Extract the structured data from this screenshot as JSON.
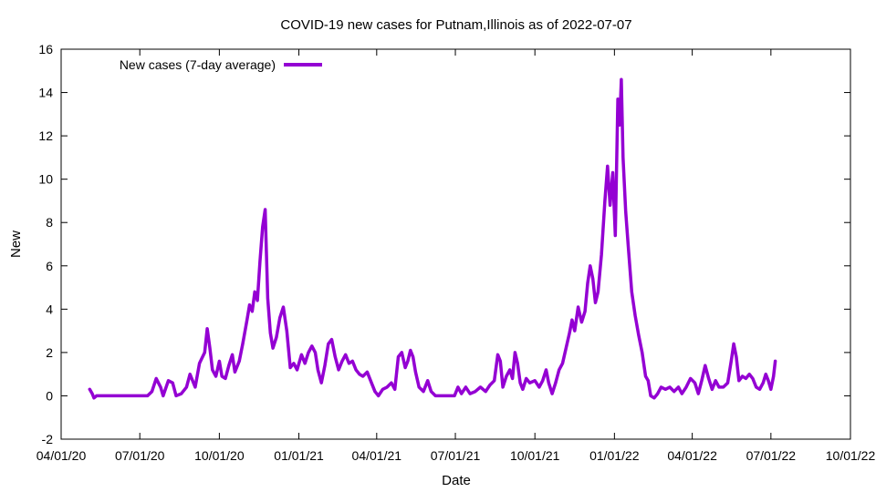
{
  "chart_data": {
    "type": "line",
    "title": "COVID-19 new cases for Putnam,Illinois as of 2022-07-07",
    "xlabel": "Date",
    "ylabel": "New",
    "ylim": [
      -2,
      16
    ],
    "yticks": [
      -2,
      0,
      2,
      4,
      6,
      8,
      10,
      12,
      14,
      16
    ],
    "xlim": [
      "2020-04-01",
      "2022-10-01"
    ],
    "xticks": [
      {
        "date": "2020-04-01",
        "label": "04/01/20"
      },
      {
        "date": "2020-07-01",
        "label": "07/01/20"
      },
      {
        "date": "2020-10-01",
        "label": "10/01/20"
      },
      {
        "date": "2021-01-01",
        "label": "01/01/21"
      },
      {
        "date": "2021-04-01",
        "label": "04/01/21"
      },
      {
        "date": "2021-07-01",
        "label": "07/01/21"
      },
      {
        "date": "2021-10-01",
        "label": "10/01/21"
      },
      {
        "date": "2022-01-01",
        "label": "01/01/22"
      },
      {
        "date": "2022-04-01",
        "label": "04/01/22"
      },
      {
        "date": "2022-07-01",
        "label": "07/01/22"
      },
      {
        "date": "2022-10-01",
        "label": "10/01/22"
      }
    ],
    "grid": false,
    "legend_position": "top-left",
    "series": [
      {
        "name": "New cases (7-day average)",
        "color": "#9400d3",
        "points": [
          [
            "2020-05-04",
            0.3
          ],
          [
            "2020-05-07",
            0.1
          ],
          [
            "2020-05-09",
            -0.1
          ],
          [
            "2020-05-12",
            0.0
          ],
          [
            "2020-06-01",
            0.0
          ],
          [
            "2020-06-20",
            0.0
          ],
          [
            "2020-07-10",
            0.0
          ],
          [
            "2020-07-15",
            0.2
          ],
          [
            "2020-07-20",
            0.8
          ],
          [
            "2020-07-25",
            0.4
          ],
          [
            "2020-07-28",
            0.0
          ],
          [
            "2020-08-03",
            0.7
          ],
          [
            "2020-08-08",
            0.6
          ],
          [
            "2020-08-12",
            0.0
          ],
          [
            "2020-08-18",
            0.1
          ],
          [
            "2020-08-24",
            0.4
          ],
          [
            "2020-08-28",
            1.0
          ],
          [
            "2020-09-03",
            0.4
          ],
          [
            "2020-09-08",
            1.5
          ],
          [
            "2020-09-14",
            2.0
          ],
          [
            "2020-09-17",
            3.1
          ],
          [
            "2020-09-20",
            2.2
          ],
          [
            "2020-09-23",
            1.2
          ],
          [
            "2020-09-27",
            0.9
          ],
          [
            "2020-10-01",
            1.6
          ],
          [
            "2020-10-04",
            0.9
          ],
          [
            "2020-10-08",
            0.8
          ],
          [
            "2020-10-12",
            1.4
          ],
          [
            "2020-10-16",
            1.9
          ],
          [
            "2020-10-19",
            1.1
          ],
          [
            "2020-10-24",
            1.6
          ],
          [
            "2020-10-28",
            2.4
          ],
          [
            "2020-11-02",
            3.5
          ],
          [
            "2020-11-05",
            4.2
          ],
          [
            "2020-11-08",
            3.9
          ],
          [
            "2020-11-11",
            4.8
          ],
          [
            "2020-11-14",
            4.4
          ],
          [
            "2020-11-17",
            6.2
          ],
          [
            "2020-11-20",
            7.8
          ],
          [
            "2020-11-23",
            8.6
          ],
          [
            "2020-11-26",
            4.5
          ],
          [
            "2020-11-29",
            2.9
          ],
          [
            "2020-12-02",
            2.2
          ],
          [
            "2020-12-06",
            2.7
          ],
          [
            "2020-12-10",
            3.6
          ],
          [
            "2020-12-14",
            4.1
          ],
          [
            "2020-12-18",
            3.0
          ],
          [
            "2020-12-22",
            1.3
          ],
          [
            "2020-12-26",
            1.5
          ],
          [
            "2020-12-30",
            1.2
          ],
          [
            "2021-01-04",
            1.9
          ],
          [
            "2021-01-08",
            1.5
          ],
          [
            "2021-01-12",
            2.0
          ],
          [
            "2021-01-16",
            2.3
          ],
          [
            "2021-01-20",
            2.0
          ],
          [
            "2021-01-23",
            1.2
          ],
          [
            "2021-01-27",
            0.6
          ],
          [
            "2021-01-31",
            1.4
          ],
          [
            "2021-02-04",
            2.4
          ],
          [
            "2021-02-08",
            2.6
          ],
          [
            "2021-02-12",
            1.8
          ],
          [
            "2021-02-16",
            1.2
          ],
          [
            "2021-02-20",
            1.6
          ],
          [
            "2021-02-24",
            1.9
          ],
          [
            "2021-02-28",
            1.5
          ],
          [
            "2021-03-04",
            1.6
          ],
          [
            "2021-03-08",
            1.2
          ],
          [
            "2021-03-12",
            1.0
          ],
          [
            "2021-03-16",
            0.9
          ],
          [
            "2021-03-21",
            1.1
          ],
          [
            "2021-03-26",
            0.6
          ],
          [
            "2021-03-30",
            0.2
          ],
          [
            "2021-04-03",
            0.0
          ],
          [
            "2021-04-08",
            0.3
          ],
          [
            "2021-04-13",
            0.4
          ],
          [
            "2021-04-18",
            0.6
          ],
          [
            "2021-04-22",
            0.3
          ],
          [
            "2021-04-26",
            1.8
          ],
          [
            "2021-04-30",
            2.0
          ],
          [
            "2021-05-04",
            1.3
          ],
          [
            "2021-05-07",
            1.6
          ],
          [
            "2021-05-10",
            2.1
          ],
          [
            "2021-05-13",
            1.8
          ],
          [
            "2021-05-16",
            1.1
          ],
          [
            "2021-05-20",
            0.4
          ],
          [
            "2021-05-25",
            0.2
          ],
          [
            "2021-05-30",
            0.7
          ],
          [
            "2021-06-03",
            0.2
          ],
          [
            "2021-06-08",
            0.0
          ],
          [
            "2021-06-20",
            0.0
          ],
          [
            "2021-06-30",
            0.0
          ],
          [
            "2021-07-04",
            0.4
          ],
          [
            "2021-07-08",
            0.1
          ],
          [
            "2021-07-13",
            0.4
          ],
          [
            "2021-07-18",
            0.1
          ],
          [
            "2021-07-24",
            0.2
          ],
          [
            "2021-07-30",
            0.4
          ],
          [
            "2021-08-05",
            0.2
          ],
          [
            "2021-08-10",
            0.5
          ],
          [
            "2021-08-15",
            0.7
          ],
          [
            "2021-08-19",
            1.9
          ],
          [
            "2021-08-22",
            1.6
          ],
          [
            "2021-08-25",
            0.4
          ],
          [
            "2021-08-29",
            0.9
          ],
          [
            "2021-09-02",
            1.2
          ],
          [
            "2021-09-05",
            0.8
          ],
          [
            "2021-09-08",
            2.0
          ],
          [
            "2021-09-11",
            1.5
          ],
          [
            "2021-09-14",
            0.6
          ],
          [
            "2021-09-17",
            0.3
          ],
          [
            "2021-09-21",
            0.8
          ],
          [
            "2021-09-25",
            0.6
          ],
          [
            "2021-10-01",
            0.7
          ],
          [
            "2021-10-06",
            0.4
          ],
          [
            "2021-10-10",
            0.7
          ],
          [
            "2021-10-14",
            1.2
          ],
          [
            "2021-10-17",
            0.6
          ],
          [
            "2021-10-21",
            0.1
          ],
          [
            "2021-10-25",
            0.6
          ],
          [
            "2021-10-29",
            1.2
          ],
          [
            "2021-11-02",
            1.5
          ],
          [
            "2021-11-06",
            2.2
          ],
          [
            "2021-11-10",
            2.9
          ],
          [
            "2021-11-13",
            3.5
          ],
          [
            "2021-11-16",
            3.0
          ],
          [
            "2021-11-20",
            4.1
          ],
          [
            "2021-11-24",
            3.4
          ],
          [
            "2021-11-28",
            3.9
          ],
          [
            "2021-12-01",
            5.2
          ],
          [
            "2021-12-04",
            6.0
          ],
          [
            "2021-12-07",
            5.4
          ],
          [
            "2021-12-10",
            4.3
          ],
          [
            "2021-12-13",
            4.8
          ],
          [
            "2021-12-17",
            6.5
          ],
          [
            "2021-12-21",
            9.0
          ],
          [
            "2021-12-24",
            10.6
          ],
          [
            "2021-12-27",
            8.8
          ],
          [
            "2021-12-30",
            10.3
          ],
          [
            "2022-01-02",
            7.4
          ],
          [
            "2022-01-05",
            13.7
          ],
          [
            "2022-01-07",
            12.5
          ],
          [
            "2022-01-09",
            14.6
          ],
          [
            "2022-01-11",
            11.0
          ],
          [
            "2022-01-14",
            8.5
          ],
          [
            "2022-01-17",
            6.9
          ],
          [
            "2022-01-21",
            4.8
          ],
          [
            "2022-01-25",
            3.7
          ],
          [
            "2022-01-29",
            2.8
          ],
          [
            "2022-02-02",
            2.0
          ],
          [
            "2022-02-06",
            0.9
          ],
          [
            "2022-02-09",
            0.7
          ],
          [
            "2022-02-12",
            0.0
          ],
          [
            "2022-02-16",
            -0.1
          ],
          [
            "2022-02-20",
            0.1
          ],
          [
            "2022-02-24",
            0.4
          ],
          [
            "2022-03-01",
            0.3
          ],
          [
            "2022-03-06",
            0.4
          ],
          [
            "2022-03-11",
            0.2
          ],
          [
            "2022-03-16",
            0.4
          ],
          [
            "2022-03-20",
            0.1
          ],
          [
            "2022-03-25",
            0.4
          ],
          [
            "2022-03-30",
            0.8
          ],
          [
            "2022-04-04",
            0.6
          ],
          [
            "2022-04-08",
            0.1
          ],
          [
            "2022-04-12",
            0.7
          ],
          [
            "2022-04-16",
            1.4
          ],
          [
            "2022-04-20",
            0.8
          ],
          [
            "2022-04-24",
            0.3
          ],
          [
            "2022-04-28",
            0.7
          ],
          [
            "2022-05-02",
            0.4
          ],
          [
            "2022-05-07",
            0.4
          ],
          [
            "2022-05-12",
            0.6
          ],
          [
            "2022-05-16",
            1.6
          ],
          [
            "2022-05-19",
            2.4
          ],
          [
            "2022-05-22",
            1.8
          ],
          [
            "2022-05-25",
            0.7
          ],
          [
            "2022-05-29",
            0.9
          ],
          [
            "2022-06-02",
            0.8
          ],
          [
            "2022-06-06",
            1.0
          ],
          [
            "2022-06-10",
            0.8
          ],
          [
            "2022-06-14",
            0.4
          ],
          [
            "2022-06-18",
            0.3
          ],
          [
            "2022-06-22",
            0.6
          ],
          [
            "2022-06-25",
            1.0
          ],
          [
            "2022-06-28",
            0.7
          ],
          [
            "2022-07-01",
            0.3
          ],
          [
            "2022-07-04",
            0.9
          ],
          [
            "2022-07-06",
            1.6
          ]
        ]
      }
    ]
  }
}
